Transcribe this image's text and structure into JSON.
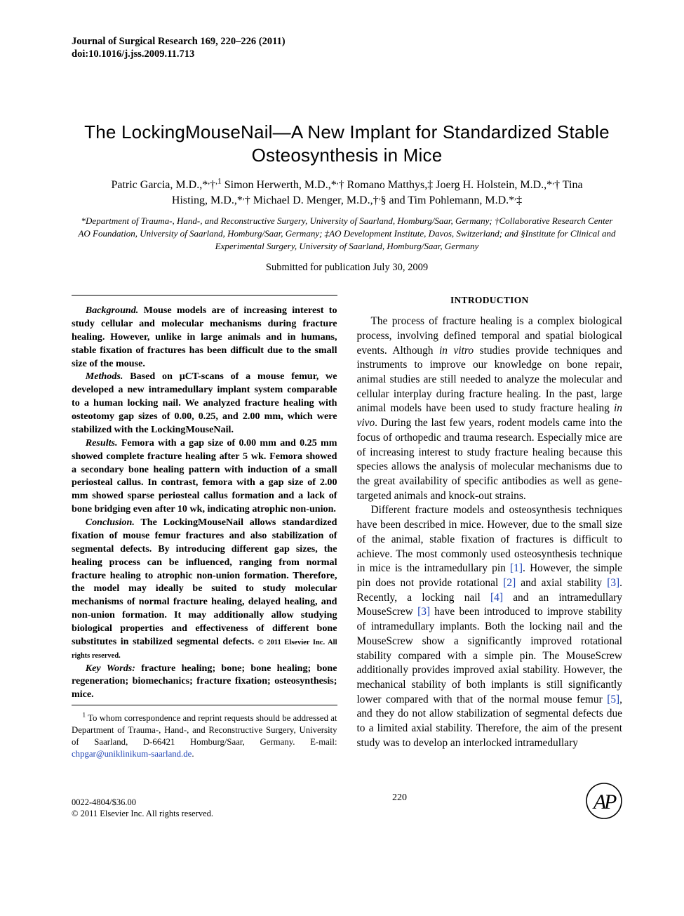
{
  "journal": {
    "line1": "Journal of Surgical Research 169, 220–226 (2011)",
    "line2": "doi:10.1016/j.jss.2009.11.713"
  },
  "title": "The LockingMouseNail—A New Implant for Standardized Stable Osteosynthesis in Mice",
  "authors_html": "Patric Garcia, M.D.,*<sup>,</sup>†<sup>,1</sup> Simon Herwerth, M.D.,*<sup>,</sup>† Romano Matthys,‡ Joerg H. Holstein, M.D.,*<sup>,</sup>† Tina Histing, M.D.,*<sup>,</sup>† Michael D. Menger, M.D.,†<sup>,</sup>§ and Tim Pohlemann, M.D.*<sup>,</sup>‡",
  "affiliations_html": "*Department of Trauma-, Hand-, and Reconstructive Surgery, University of Saarland, Homburg/Saar, Germany; †Collaborative Research Center AO Foundation, University of Saarland, Homburg/Saar, Germany; ‡AO Development Institute, Davos, Switzerland; and §Institute for Clinical and Experimental Surgery, University of Saarland, Homburg/Saar, Germany",
  "submitted": "Submitted for publication July 30, 2009",
  "abstract": {
    "background": {
      "lead": "Background.",
      "text": "Mouse models are of increasing interest to study cellular and molecular mechanisms during fracture healing. However, unlike in large animals and in humans, stable fixation of fractures has been difficult due to the small size of the mouse."
    },
    "methods": {
      "lead": "Methods.",
      "text": "Based on μCT-scans of a mouse femur, we developed a new intramedullary implant system comparable to a human locking nail. We analyzed fracture healing with osteotomy gap sizes of 0.00, 0.25, and 2.00 mm, which were stabilized with the LockingMouseNail."
    },
    "results": {
      "lead": "Results.",
      "text": "Femora with a gap size of 0.00 mm and 0.25 mm showed complete fracture healing after 5 wk. Femora showed a secondary bone healing pattern with induction of a small periosteal callus. In contrast, femora with a gap size of 2.00 mm showed sparse periosteal callus formation and a lack of bone bridging even after 10 wk, indicating atrophic non-union."
    },
    "conclusion": {
      "lead": "Conclusion.",
      "text": "The LockingMouseNail allows standardized fixation of mouse femur fractures and also stabilization of segmental defects. By introducing different gap sizes, the healing process can be influenced, ranging from normal fracture healing to atrophic non-union formation. Therefore, the model may ideally be suited to study molecular mechanisms of normal fracture healing, delayed healing, and non-union formation. It may additionally allow studying biological properties and effectiveness of different bone substitutes in stabilized segmental defects."
    },
    "copyright": "© 2011 Elsevier Inc. All rights reserved."
  },
  "keywords": {
    "lead": "Key Words:",
    "text": "fracture healing; bone; bone healing; bone regeneration; biomechanics; fracture fixation; osteosynthesis; mice."
  },
  "footnote": {
    "marker": "1",
    "text_before": " To whom correspondence and reprint requests should be addressed at Department of Trauma-, Hand-, and Reconstructive Surgery, University of Saarland, D-66421 Homburg/Saar, Germany. E-mail: ",
    "email": "chpgar@uniklinikum-saarland.de",
    "text_after": "."
  },
  "section_heading": "INTRODUCTION",
  "body": {
    "p1_html": "The process of fracture healing is a complex biological process, involving defined temporal and spatial biological events. Although <span class=\"ital\">in vitro</span> studies provide techniques and instruments to improve our knowledge on bone repair, animal studies are still needed to analyze the molecular and cellular interplay during fracture healing. In the past, large animal models have been used to study fracture healing <span class=\"ital\">in vivo</span>. During the last few years, rodent models came into the focus of orthopedic and trauma research. Especially mice are of increasing interest to study fracture healing because this species allows the analysis of molecular mechanisms due to the great availability of specific antibodies as well as gene-targeted animals and knock-out strains.",
    "p2_html": "Different fracture models and osteosynthesis techniques have been described in mice. However, due to the small size of the animal, stable fixation of fractures is difficult to achieve. The most commonly used osteosynthesis technique in mice is the intramedullary pin <span class=\"ref\">[1]</span>. However, the simple pin does not provide rotational <span class=\"ref\">[2]</span> and axial stability <span class=\"ref\">[3]</span>. Recently, a locking nail <span class=\"ref\">[4]</span> and an intramedullary MouseScrew <span class=\"ref\">[3]</span> have been introduced to improve stability of intramedullary implants. Both the locking nail and the MouseScrew show a significantly improved rotational stability compared with a simple pin. The MouseScrew additionally provides improved axial stability. However, the mechanical stability of both implants is still significantly lower compared with that of the normal mouse femur <span class=\"ref\">[5]</span>, and they do not allow stabilization of segmental defects due to a limited axial stability. Therefore, the aim of the present study was to develop an interlocked intramedullary"
  },
  "footer": {
    "issn": "0022-4804/$36.00",
    "copyright": "© 2011 Elsevier Inc. All rights reserved.",
    "page": "220"
  },
  "colors": {
    "text": "#000000",
    "link": "#1a3fb3",
    "background": "#ffffff",
    "rule": "#000000"
  }
}
